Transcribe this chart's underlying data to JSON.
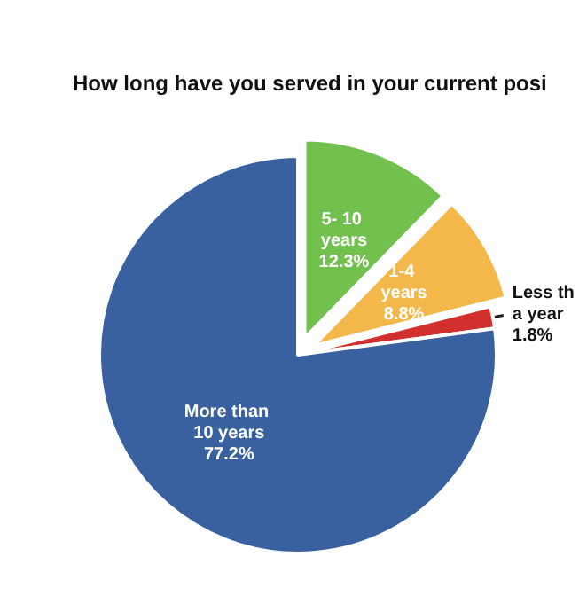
{
  "chart_data": {
    "type": "pie",
    "title": "How long have you served in your current posi",
    "categories": [
      "5- 10 years",
      "1-4 years",
      "Less th a year",
      "More than 10 years"
    ],
    "values": [
      12.3,
      8.8,
      1.8,
      77.2
    ],
    "colors": [
      "#72c04e",
      "#f4b84a",
      "#d22f2f",
      "#3a619f"
    ],
    "value_labels": [
      "12.3%",
      "8.8%",
      "1.8%",
      "77.2%"
    ],
    "legend": false
  }
}
